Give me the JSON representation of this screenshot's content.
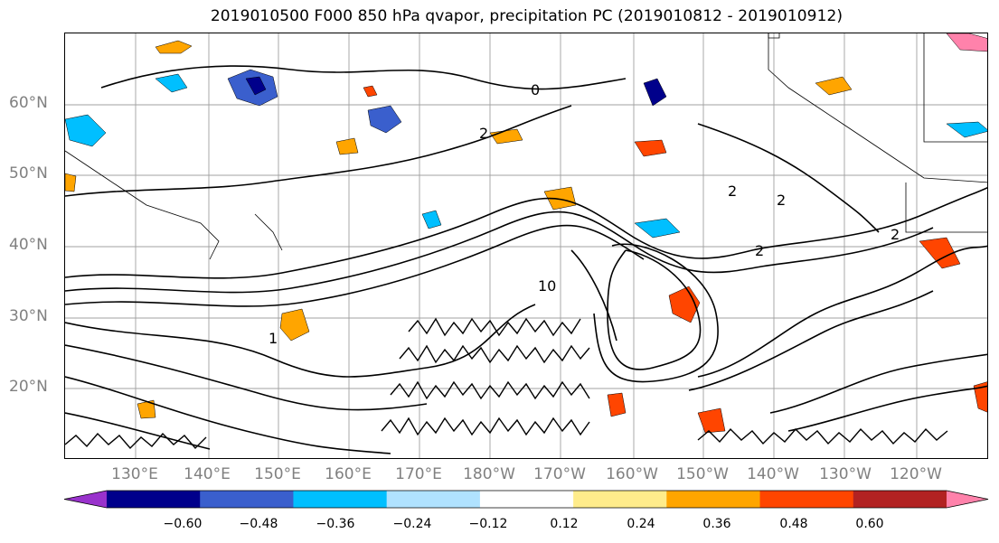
{
  "title": "2019010500 F000 850 hPa qvapor, precipitation PC (2019010812 - 2019010912)",
  "lat_labels": [
    "60°N",
    "50°N",
    "40°N",
    "30°N",
    "20°N"
  ],
  "lon_labels": [
    "130°E",
    "140°E",
    "150°E",
    "160°E",
    "170°E",
    "180°W",
    "170°W",
    "160°W",
    "150°W",
    "140°W",
    "130°W",
    "120°W"
  ],
  "colorbar": {
    "colors": [
      "#9932cc",
      "#00008b",
      "#3a5fcd",
      "#00bfff",
      "#b0e2ff",
      "#ffffff",
      "#ffec8b",
      "#ffa500",
      "#ff4500",
      "#b22222",
      "#ff82ab"
    ],
    "ticks": [
      "−0.60",
      "−0.48",
      "−0.36",
      "−0.24",
      "−0.12",
      "0.12",
      "0.24",
      "0.36",
      "0.48",
      "0.60"
    ],
    "extend": "both"
  },
  "contour_labels": [
    "0",
    "2",
    "2",
    "2",
    "2",
    "2",
    "1",
    "10"
  ],
  "gridlines": true
}
